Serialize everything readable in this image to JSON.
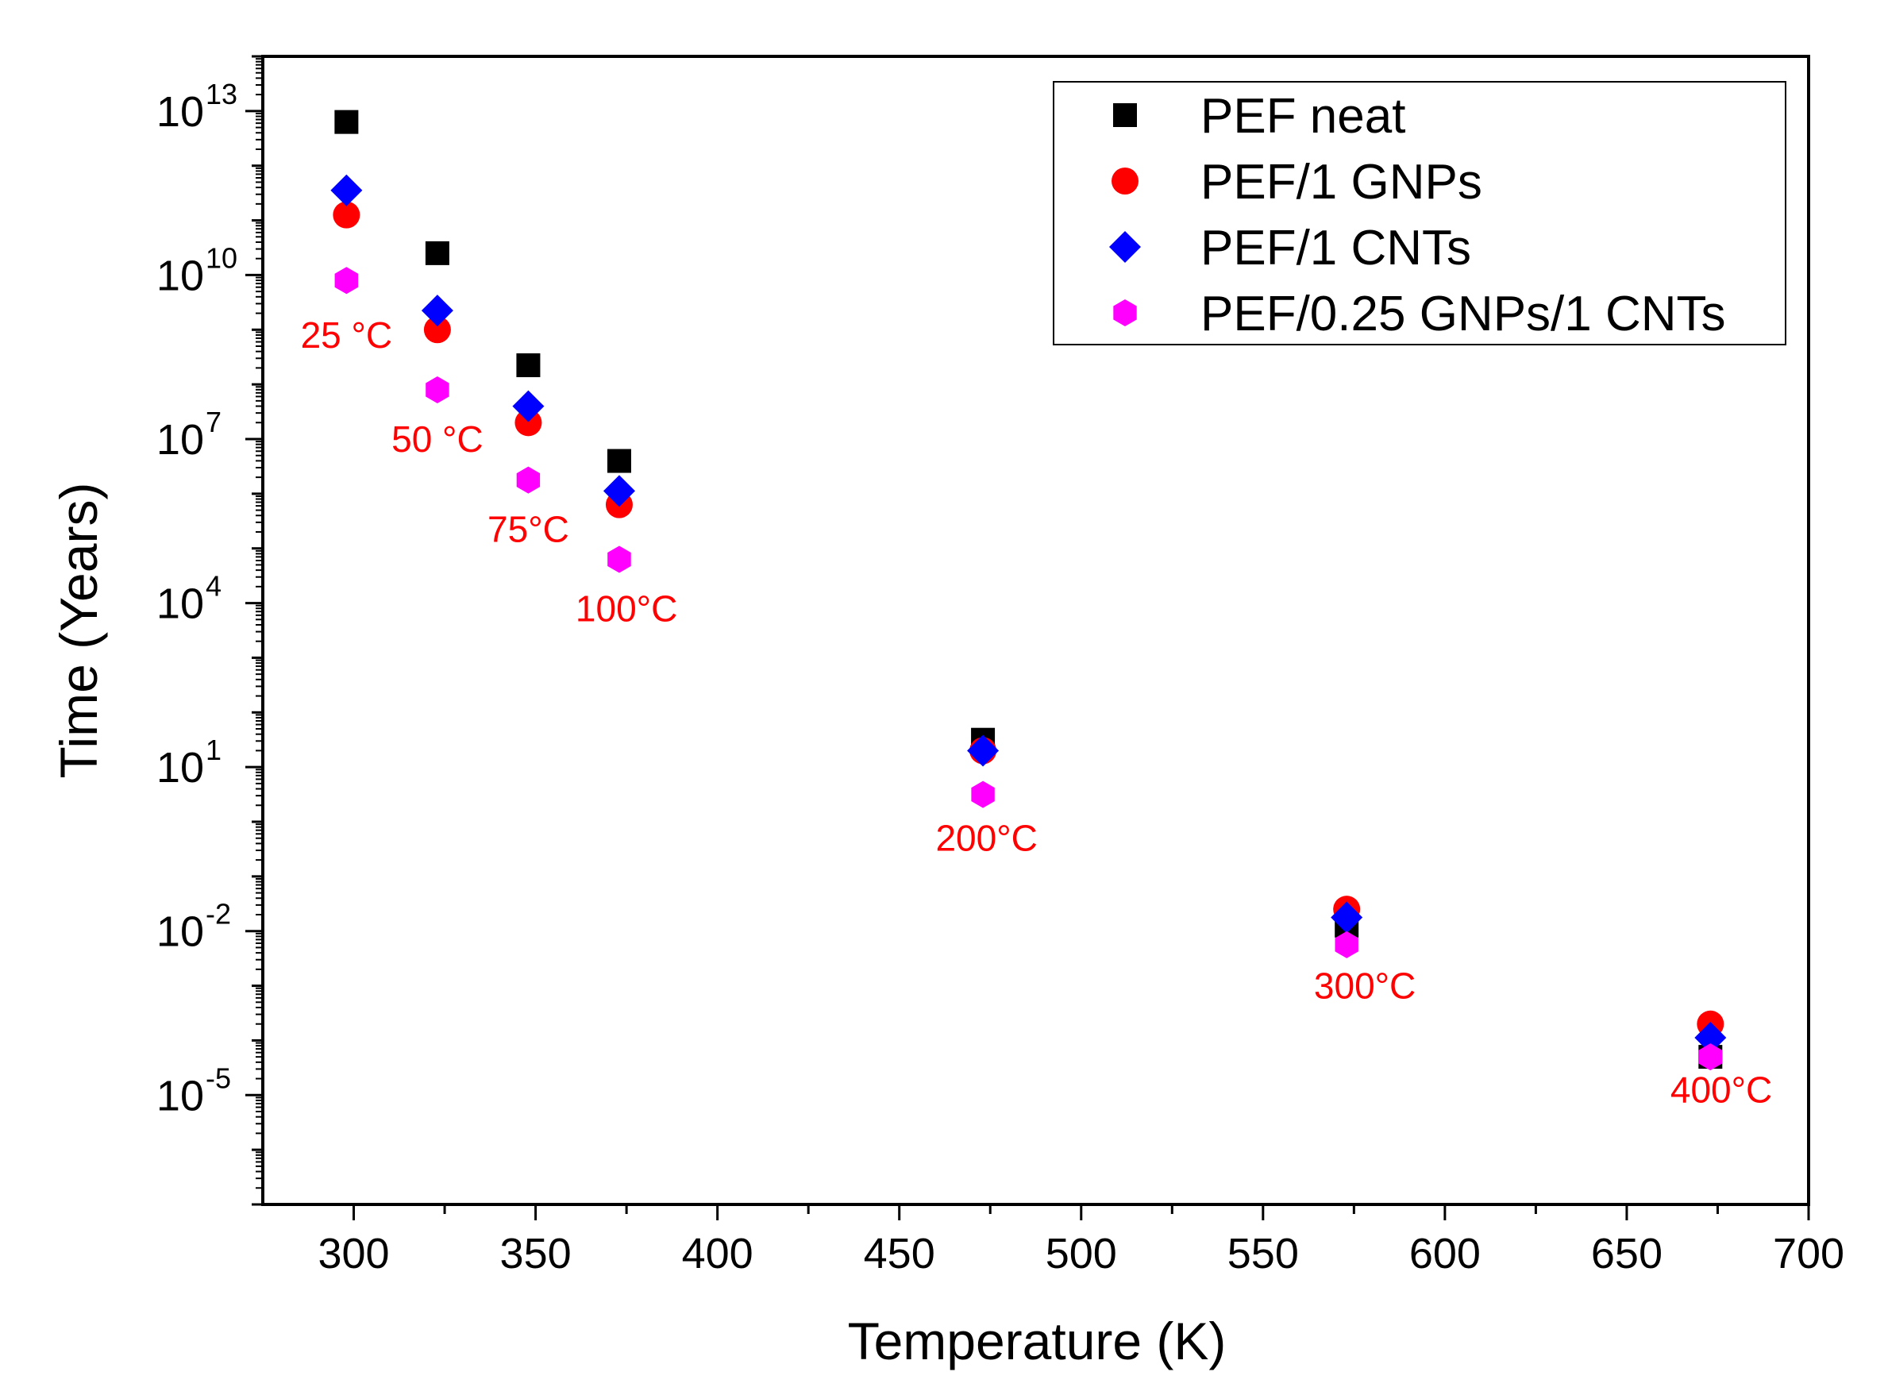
{
  "chart_data": {
    "type": "scatter",
    "title": "",
    "xlabel": "Temperature (K)",
    "ylabel": "Time (Years)",
    "xlim": [
      275,
      700
    ],
    "ylim_log10": [
      -7,
      14
    ],
    "y_scale": "log",
    "grid": false,
    "legend_position": "top-right",
    "x_ticks": [
      300,
      350,
      400,
      450,
      500,
      550,
      600,
      650,
      700
    ],
    "y_ticks": [
      {
        "base": "10",
        "exp": "13",
        "log10": 13
      },
      {
        "base": "10",
        "exp": "10",
        "log10": 10
      },
      {
        "base": "10",
        "exp": "7",
        "log10": 7
      },
      {
        "base": "10",
        "exp": "4",
        "log10": 4
      },
      {
        "base": "10",
        "exp": "1",
        "log10": 1
      },
      {
        "base": "10",
        "exp": "-2",
        "log10": -2
      },
      {
        "base": "10",
        "exp": "-5",
        "log10": -5
      }
    ],
    "series": [
      {
        "name": "PEF neat",
        "color": "#000000",
        "marker": "square",
        "x": [
          298,
          323,
          348,
          373,
          473,
          573,
          673
        ],
        "log10_y": [
          12.8,
          10.4,
          8.35,
          6.6,
          1.5,
          -1.9,
          -4.3
        ]
      },
      {
        "name": "PEF/1 GNPs",
        "color": "#ff0000",
        "marker": "circle",
        "x": [
          298,
          323,
          348,
          373,
          473,
          573,
          673
        ],
        "log10_y": [
          11.1,
          9.0,
          7.3,
          5.8,
          1.3,
          -1.6,
          -3.7
        ]
      },
      {
        "name": "PEF/1 CNTs",
        "color": "#0000ff",
        "marker": "diamond",
        "x": [
          298,
          323,
          348,
          373,
          473,
          573,
          673
        ],
        "log10_y": [
          11.55,
          9.35,
          7.6,
          6.05,
          1.3,
          -1.75,
          -3.95
        ]
      },
      {
        "name": "PEF/0.25 GNPs/1 CNTs",
        "color": "#ff00ff",
        "marker": "hexagon",
        "x": [
          298,
          323,
          348,
          373,
          473,
          573,
          673
        ],
        "log10_y": [
          9.9,
          7.9,
          6.25,
          4.8,
          0.5,
          -2.25,
          -4.3
        ]
      }
    ],
    "annotations": [
      {
        "text": "25 °C",
        "x": 298,
        "log10_y": 8.9
      },
      {
        "text": "50 °C",
        "x": 323,
        "log10_y": 7.0
      },
      {
        "text": "75°C",
        "x": 348,
        "log10_y": 5.35
      },
      {
        "text": "100°C",
        "x": 375,
        "log10_y": 3.9
      },
      {
        "text": "200°C",
        "x": 474,
        "log10_y": -0.3
      },
      {
        "text": "300°C",
        "x": 578,
        "log10_y": -3.0
      },
      {
        "text": "400°C",
        "x": 676,
        "log10_y": -4.9
      }
    ],
    "annotation_color": "#ff0000"
  }
}
